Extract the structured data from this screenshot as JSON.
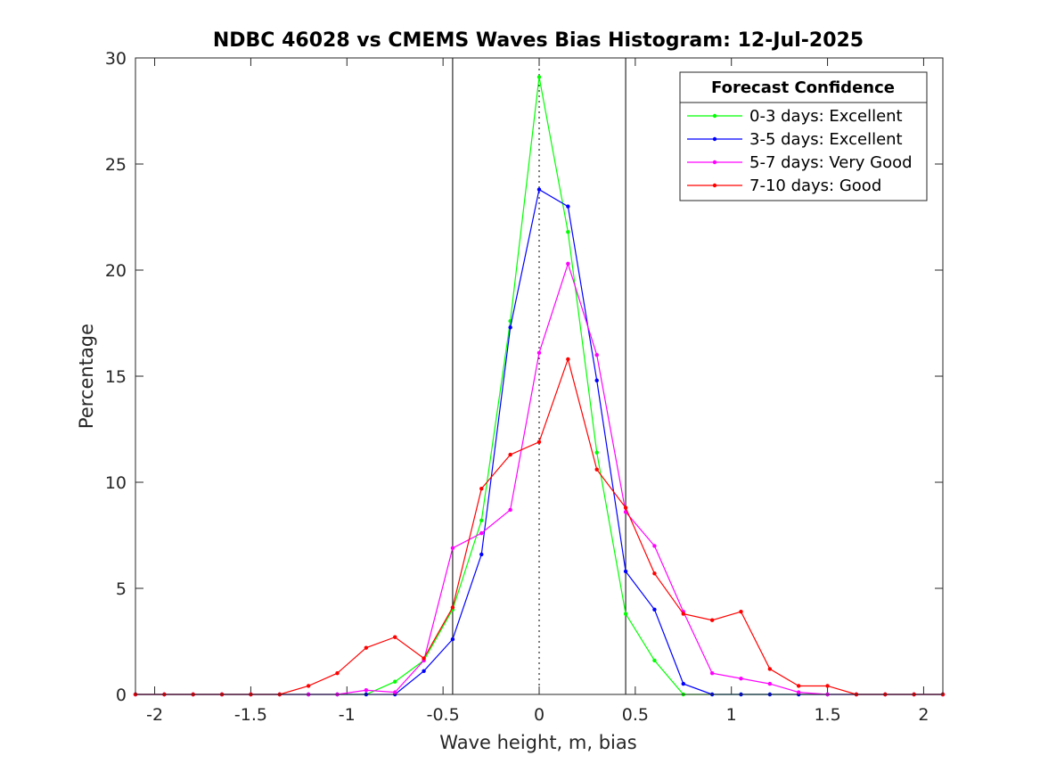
{
  "chart_data": {
    "type": "line",
    "title": "NDBC 46028 vs CMEMS Waves Bias Histogram: 12-Jul-2025",
    "xlabel": "Wave height, m, bias",
    "ylabel": "Percentage",
    "xlim": [
      -2.1,
      2.1
    ],
    "ylim": [
      0,
      30
    ],
    "xticks": [
      -2,
      -1.5,
      -1,
      -0.5,
      0,
      0.5,
      1,
      1.5,
      2
    ],
    "xtick_labels": [
      "-2",
      "-1.5",
      "-1",
      "-0.5",
      "0",
      "0.5",
      "1",
      "1.5",
      "2"
    ],
    "yticks": [
      0,
      5,
      10,
      15,
      20,
      25,
      30
    ],
    "ytick_labels": [
      "0",
      "5",
      "10",
      "15",
      "20",
      "25",
      "30"
    ],
    "grid": false,
    "legend": {
      "title": "Forecast Confidence",
      "placement": "top-right"
    },
    "reference_lines": {
      "solid_vertical": [
        -0.45,
        0.45
      ],
      "dotted_vertical": [
        0
      ]
    },
    "x": [
      -2.1,
      -1.95,
      -1.8,
      -1.65,
      -1.5,
      -1.35,
      -1.2,
      -1.05,
      -0.9,
      -0.75,
      -0.6,
      -0.45,
      -0.3,
      -0.15,
      0,
      0.15,
      0.3,
      0.45,
      0.6,
      0.75,
      0.9,
      1.05,
      1.2,
      1.35,
      1.5,
      1.65,
      1.8,
      1.95,
      2.1
    ],
    "series": [
      {
        "name": "0-3 days: Excellent",
        "color": "#00ff00",
        "values": [
          0,
          0,
          0,
          0,
          0,
          0,
          0,
          0,
          0,
          0.6,
          1.6,
          4.0,
          8.2,
          17.6,
          29.1,
          21.8,
          11.4,
          3.8,
          1.6,
          0,
          0,
          0,
          0,
          0,
          0,
          0,
          0,
          0,
          0
        ]
      },
      {
        "name": "3-5 days: Excellent",
        "color": "#0000ff",
        "values": [
          0,
          0,
          0,
          0,
          0,
          0,
          0,
          0,
          0,
          0,
          1.1,
          2.6,
          6.6,
          17.3,
          23.8,
          23.0,
          14.8,
          5.8,
          4.0,
          0.5,
          0,
          0,
          0,
          0,
          0,
          0,
          0,
          0,
          0
        ]
      },
      {
        "name": "5-7 days: Very Good",
        "color": "#ff00ff",
        "values": [
          0,
          0,
          0,
          0,
          0,
          0,
          0,
          0,
          0.2,
          0.1,
          1.6,
          6.9,
          7.6,
          8.7,
          16.1,
          20.3,
          16.0,
          8.6,
          7.0,
          3.9,
          1.0,
          0.75,
          0.5,
          0.1,
          0,
          0,
          0,
          0,
          0
        ]
      },
      {
        "name": "7-10 days: Good",
        "color": "#ff0000",
        "values": [
          0,
          0,
          0,
          0,
          0,
          0,
          0.4,
          1.0,
          2.2,
          2.7,
          1.7,
          4.1,
          9.7,
          11.3,
          11.9,
          15.8,
          10.6,
          8.8,
          5.7,
          3.8,
          3.5,
          3.9,
          1.2,
          0.4,
          0.4,
          0,
          0,
          0,
          0
        ]
      }
    ]
  }
}
